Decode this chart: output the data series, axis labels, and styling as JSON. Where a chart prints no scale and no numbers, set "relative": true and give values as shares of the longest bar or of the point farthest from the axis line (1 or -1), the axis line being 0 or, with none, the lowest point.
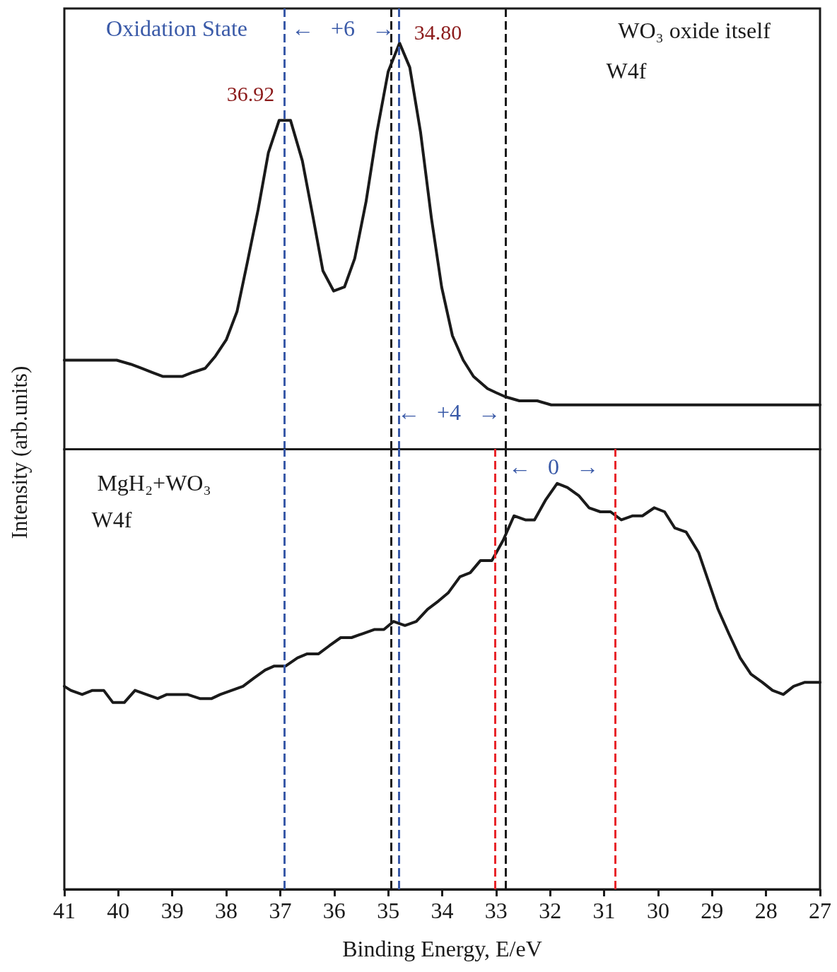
{
  "chart_data": [
    {
      "type": "line",
      "relative": true,
      "xlim": [
        41,
        27
      ],
      "tick_labels": false,
      "x": [
        41.0,
        40.62,
        40.4,
        40.03,
        39.77,
        39.57,
        39.38,
        39.18,
        38.81,
        38.62,
        38.39,
        38.2,
        38.0,
        37.8,
        37.61,
        37.41,
        37.22,
        37.02,
        36.81,
        36.59,
        36.39,
        36.21,
        36.01,
        35.81,
        35.62,
        35.41,
        35.21,
        35.0,
        34.79,
        34.6,
        34.4,
        34.2,
        34.01,
        33.81,
        33.61,
        33.42,
        33.16,
        33.0,
        32.83,
        32.57,
        32.24,
        31.98,
        31.19,
        29.88,
        28.57,
        27.66,
        27.0
      ],
      "series": [
        {
          "color": "#1a1a1a",
          "values": [
            0.22,
            0.22,
            0.22,
            0.22,
            0.21,
            0.2,
            0.19,
            0.18,
            0.18,
            0.19,
            0.2,
            0.23,
            0.27,
            0.34,
            0.46,
            0.59,
            0.73,
            0.81,
            0.81,
            0.71,
            0.57,
            0.44,
            0.39,
            0.4,
            0.47,
            0.61,
            0.78,
            0.93,
            1.0,
            0.94,
            0.78,
            0.57,
            0.4,
            0.28,
            0.22,
            0.18,
            0.15,
            0.14,
            0.13,
            0.12,
            0.12,
            0.11,
            0.11,
            0.11,
            0.11,
            0.11,
            0.11
          ]
        }
      ],
      "ref_lines": [
        {
          "axis": "x",
          "value": 36.92,
          "label": "36.92",
          "color": "#3a5aa8",
          "line_style": "dashed"
        },
        {
          "axis": "x",
          "value": 34.8,
          "label": "34.80",
          "color": "#3a5aa8",
          "line_style": "dashed"
        },
        {
          "axis": "x",
          "value": 34.94,
          "label": null,
          "color": "#1a1a1a",
          "line_style": "dashed"
        },
        {
          "axis": "x",
          "value": 32.83,
          "label": null,
          "color": "#1a1a1a",
          "line_style": "dashed"
        }
      ],
      "annotations": [
        "Oxidation State",
        "←   +6   →",
        "WO₃ oxide itself",
        "W4f",
        "←   +4   →"
      ]
    },
    {
      "type": "line",
      "relative": true,
      "xlim": [
        41,
        27
      ],
      "xticks": [
        41,
        40,
        39,
        38,
        37,
        36,
        35,
        34,
        33,
        32,
        31,
        30,
        29,
        28,
        27
      ],
      "tick_labels": "x",
      "xlabel": "Binding Energy, E/eV",
      "ylabel": "Intensity (arb.units)",
      "x": [
        41.0,
        40.88,
        40.67,
        40.48,
        40.27,
        40.1,
        39.89,
        39.69,
        39.48,
        39.27,
        39.1,
        38.89,
        38.72,
        38.49,
        38.27,
        38.11,
        37.9,
        37.69,
        37.49,
        37.28,
        37.11,
        36.9,
        36.68,
        36.5,
        36.29,
        36.09,
        35.88,
        35.68,
        35.47,
        35.26,
        35.08,
        34.9,
        34.69,
        34.48,
        34.27,
        34.07,
        33.89,
        33.67,
        33.48,
        33.29,
        33.08,
        32.87,
        32.67,
        32.46,
        32.29,
        32.08,
        31.87,
        31.68,
        31.47,
        31.28,
        31.07,
        30.88,
        30.68,
        30.47,
        30.29,
        30.07,
        29.88,
        29.69,
        29.48,
        29.25,
        29.07,
        28.89,
        28.69,
        28.48,
        28.28,
        28.07,
        27.88,
        27.68,
        27.49,
        27.28,
        27.0
      ],
      "series": [
        {
          "color": "#1a1a1a",
          "values": [
            0.5,
            0.49,
            0.48,
            0.49,
            0.49,
            0.46,
            0.46,
            0.49,
            0.48,
            0.47,
            0.48,
            0.48,
            0.48,
            0.47,
            0.47,
            0.48,
            0.49,
            0.5,
            0.52,
            0.54,
            0.55,
            0.55,
            0.57,
            0.58,
            0.58,
            0.6,
            0.62,
            0.62,
            0.63,
            0.64,
            0.64,
            0.66,
            0.65,
            0.66,
            0.69,
            0.71,
            0.73,
            0.77,
            0.78,
            0.81,
            0.81,
            0.86,
            0.92,
            0.91,
            0.91,
            0.96,
            1.0,
            0.99,
            0.97,
            0.94,
            0.93,
            0.93,
            0.91,
            0.92,
            0.92,
            0.94,
            0.93,
            0.89,
            0.88,
            0.83,
            0.76,
            0.69,
            0.63,
            0.57,
            0.53,
            0.51,
            0.49,
            0.48,
            0.5,
            0.51,
            0.51
          ]
        }
      ],
      "ref_lines": [
        {
          "axis": "x",
          "value": 36.92,
          "label": null,
          "color": "#3a5aa8",
          "line_style": "dashed"
        },
        {
          "axis": "x",
          "value": 34.8,
          "label": null,
          "color": "#3a5aa8",
          "line_style": "dashed"
        },
        {
          "axis": "x",
          "value": 34.94,
          "label": null,
          "color": "#1a1a1a",
          "line_style": "dashed"
        },
        {
          "axis": "x",
          "value": 32.83,
          "label": null,
          "color": "#1a1a1a",
          "line_style": "dashed"
        },
        {
          "axis": "x",
          "value": 33.02,
          "label": null,
          "color": "#e8262b",
          "line_style": "dashed"
        },
        {
          "axis": "x",
          "value": 30.79,
          "label": null,
          "color": "#e8262b",
          "line_style": "dashed"
        }
      ],
      "annotations": [
        "MgH₂+WO₃",
        "W4f",
        "←   0   →"
      ]
    }
  ]
}
